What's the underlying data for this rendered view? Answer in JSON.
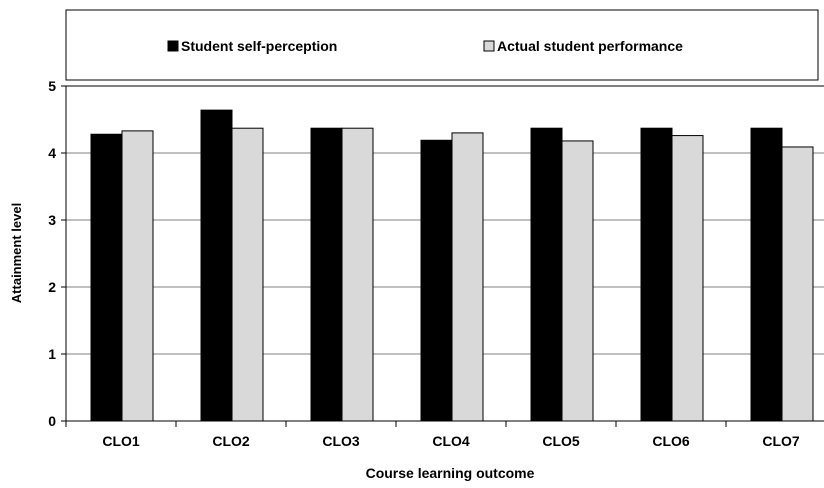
{
  "chart_data": {
    "type": "bar",
    "categories": [
      "CLO1",
      "CLO2",
      "CLO3",
      "CLO4",
      "CLO5",
      "CLO6",
      "CLO7"
    ],
    "series": [
      {
        "name": "Student self-perception",
        "values": [
          4.28,
          4.64,
          4.37,
          4.19,
          4.37,
          4.37,
          4.37
        ],
        "color": "#000000"
      },
      {
        "name": "Actual student performance",
        "values": [
          4.33,
          4.37,
          4.37,
          4.3,
          4.18,
          4.26,
          4.09
        ],
        "color": "#d9d9d9"
      }
    ],
    "title": "",
    "xlabel": "Course learning outcome",
    "ylabel": "Attainment  level",
    "ylim": [
      0,
      5
    ],
    "yticks": [
      0,
      1,
      2,
      3,
      4,
      5
    ],
    "grid": true,
    "legend_position": "top"
  }
}
